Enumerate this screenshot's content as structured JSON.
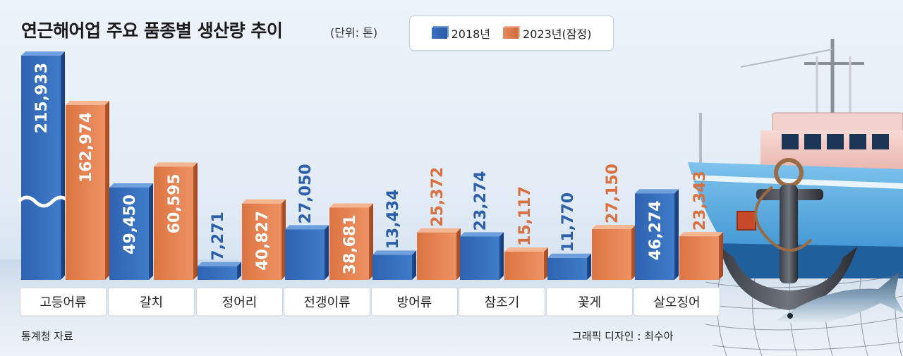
{
  "title": "연근해어업 주요 품종별 생산량 추이",
  "unit_note": "(단위: 톤)",
  "legend": [
    {
      "label": "2018년",
      "color": "#3669b6"
    },
    {
      "label": "2023년(잠정)",
      "color": "#e07c4d"
    }
  ],
  "source": "통계청 자료",
  "credit": "그래픽 디자인 : 최수아",
  "chart_data": {
    "type": "bar",
    "title": "연근해어업 주요 품종별 생산량 추이",
    "unit": "(단위: 톤)",
    "categories": [
      "고등어류",
      "갈치",
      "정어리",
      "전갱이류",
      "방어류",
      "참조기",
      "꽃게",
      "살오징어"
    ],
    "series": [
      {
        "name": "2018년",
        "values": [
          215933,
          49450,
          7271,
          27050,
          13434,
          23274,
          11770,
          46274
        ]
      },
      {
        "name": "2023년(잠정)",
        "values": [
          162974,
          60595,
          40827,
          38681,
          25372,
          15117,
          27150,
          23343
        ]
      }
    ],
    "labels": [
      [
        "215,933",
        "49,450",
        "7,271",
        "27,050",
        "13,434",
        "23,274",
        "11,770",
        "46,274"
      ],
      [
        "162,974",
        "60,595",
        "40,827",
        "38,681",
        "25,372",
        "15,117",
        "27,150",
        "23,343"
      ]
    ],
    "axis_break": true,
    "grid": false,
    "legend_position": "top"
  }
}
